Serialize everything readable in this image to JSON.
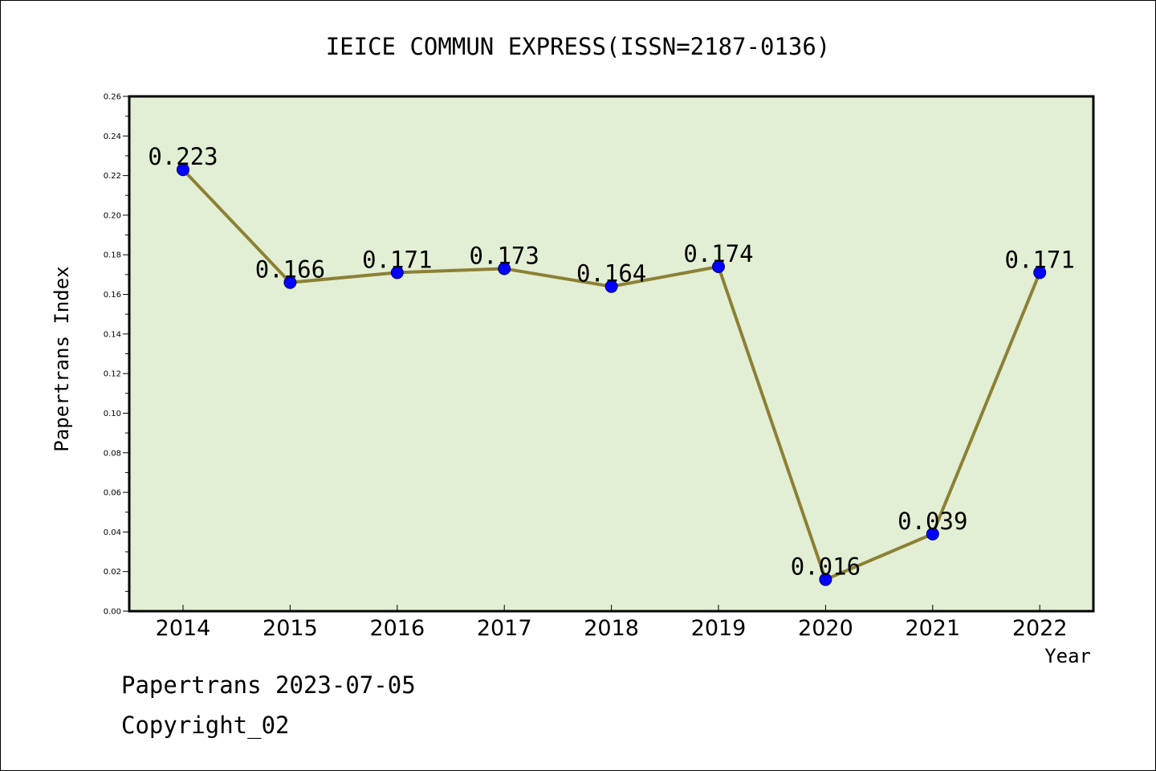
{
  "chart_data": {
    "type": "line",
    "title": "IEICE COMMUN EXPRESS(ISSN=2187-0136)",
    "xlabel": "Year",
    "ylabel": "Papertrans Index",
    "categories": [
      "2014",
      "2015",
      "2016",
      "2017",
      "2018",
      "2019",
      "2020",
      "2021",
      "2022"
    ],
    "values": [
      0.223,
      0.166,
      0.171,
      0.173,
      0.164,
      0.174,
      0.016,
      0.039,
      0.171
    ],
    "data_labels": [
      "0.223",
      "0.166",
      "0.171",
      "0.173",
      "0.164",
      "0.174",
      "0.016",
      "0.039",
      "0.171"
    ],
    "ylim": [
      0,
      0.26
    ],
    "yticks": [
      "0.00",
      "0.02",
      "0.04",
      "0.06",
      "0.08",
      "0.10",
      "0.12",
      "0.14",
      "0.16",
      "0.18",
      "0.20",
      "0.22",
      "0.24",
      "0.26"
    ],
    "grid": false,
    "legend": "none",
    "colors": {
      "plot_background": "#e2efd4",
      "line": "#8c8035",
      "marker": "#0000ff"
    }
  },
  "footer": {
    "date_text": "Papertrans 2023-07-05",
    "copyright_text": "Copyright_02"
  }
}
